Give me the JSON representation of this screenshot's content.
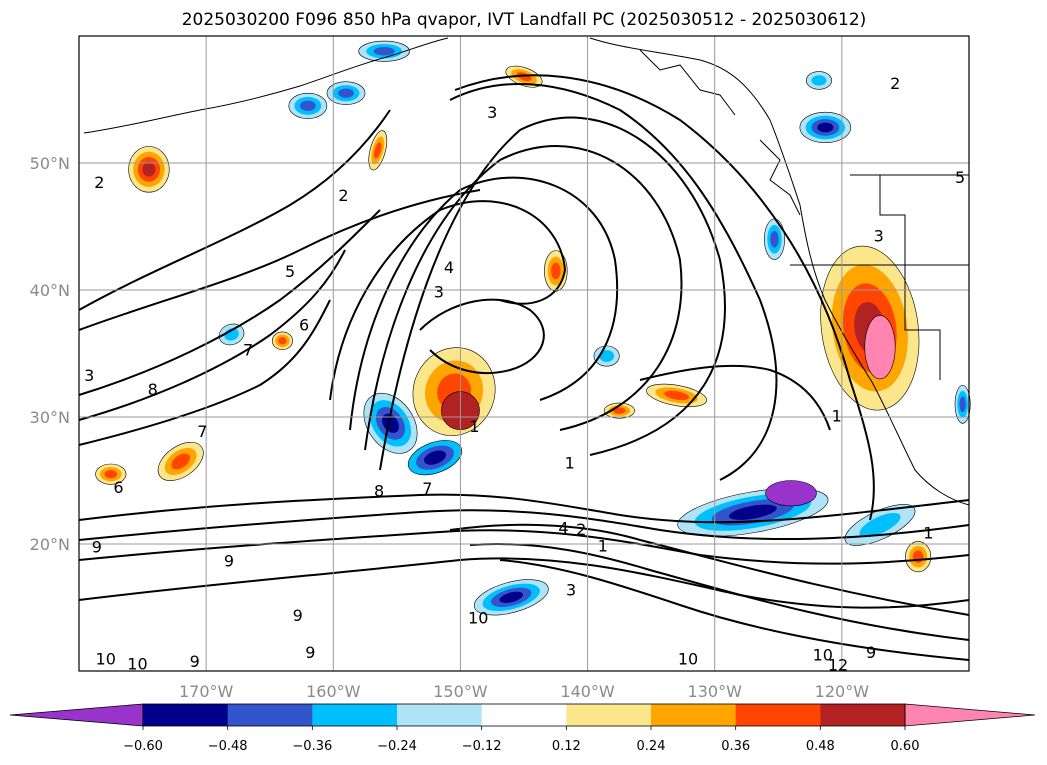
{
  "chart_data": {
    "type": "heatmap",
    "title": "2025030200 F096 850 hPa qvapor, IVT Landfall PC (2025030512 - 2025030612)",
    "lon_range": [
      -180,
      -110
    ],
    "lat_range": [
      10,
      60
    ],
    "x_ticks": [
      -170,
      -160,
      -150,
      -140,
      -130,
      -120
    ],
    "x_tick_labels": [
      "170°W",
      "160°W",
      "150°W",
      "140°W",
      "130°W",
      "120°W"
    ],
    "y_ticks": [
      20,
      30,
      40,
      50
    ],
    "y_tick_labels": [
      "20°N",
      "30°N",
      "40°N",
      "50°N"
    ],
    "grid": true,
    "colorbar": {
      "orientation": "horizontal",
      "extend": "both",
      "levels": [
        -0.72,
        -0.6,
        -0.48,
        -0.36,
        -0.24,
        -0.12,
        0.12,
        0.24,
        0.36,
        0.48,
        0.6,
        0.72
      ],
      "tick_labels": [
        "−0.60",
        "−0.48",
        "−0.36",
        "−0.24",
        "−0.12",
        "0.12",
        "0.24",
        "0.36",
        "0.48",
        "0.60"
      ],
      "colors": [
        "#9933cc",
        "#00008b",
        "#3355cc",
        "#00bfff",
        "#aee3f8",
        "#ffffff",
        "#fce68c",
        "#ffa500",
        "#ff4500",
        "#b22222",
        "#ff85b0",
        "#ff85b0"
      ]
    },
    "contour_labels": [
      {
        "text": "3",
        "lon": -147.5,
        "lat": 54.0
      },
      {
        "text": "2",
        "lon": -115.8,
        "lat": 56.3
      },
      {
        "text": "2",
        "lon": -178.4,
        "lat": 48.5
      },
      {
        "text": "2",
        "lon": -159.2,
        "lat": 47.5
      },
      {
        "text": "5",
        "lon": -163.4,
        "lat": 41.5
      },
      {
        "text": "4",
        "lon": -150.9,
        "lat": 41.8
      },
      {
        "text": "3",
        "lon": -151.7,
        "lat": 39.9
      },
      {
        "text": "6",
        "lon": -162.3,
        "lat": 37.3
      },
      {
        "text": "7",
        "lon": -166.7,
        "lat": 35.3
      },
      {
        "text": "3",
        "lon": -179.2,
        "lat": 33.3
      },
      {
        "text": "8",
        "lon": -174.2,
        "lat": 32.2
      },
      {
        "text": "7",
        "lon": -170.3,
        "lat": 28.9
      },
      {
        "text": "1",
        "lon": -148.9,
        "lat": 29.3
      },
      {
        "text": "1",
        "lon": -141.4,
        "lat": 26.4
      },
      {
        "text": "6",
        "lon": -176.9,
        "lat": 24.5
      },
      {
        "text": "8",
        "lon": -156.4,
        "lat": 24.2
      },
      {
        "text": "7",
        "lon": -152.6,
        "lat": 24.4
      },
      {
        "text": "4",
        "lon": -141.9,
        "lat": 21.3
      },
      {
        "text": "2",
        "lon": -140.5,
        "lat": 21.2
      },
      {
        "text": "1",
        "lon": -120.4,
        "lat": 30.1
      },
      {
        "text": "1",
        "lon": -138.8,
        "lat": 19.9
      },
      {
        "text": "9",
        "lon": -178.6,
        "lat": 19.8
      },
      {
        "text": "9",
        "lon": -168.2,
        "lat": 18.7
      },
      {
        "text": "3",
        "lon": -141.3,
        "lat": 16.4
      },
      {
        "text": "1",
        "lon": -113.2,
        "lat": 20.9
      },
      {
        "text": "9",
        "lon": -162.8,
        "lat": 14.4
      },
      {
        "text": "10",
        "lon": -148.6,
        "lat": 14.2
      },
      {
        "text": "10",
        "lon": -177.9,
        "lat": 11.0
      },
      {
        "text": "10",
        "lon": -175.4,
        "lat": 10.6
      },
      {
        "text": "9",
        "lon": -170.9,
        "lat": 10.8
      },
      {
        "text": "9",
        "lon": -161.8,
        "lat": 11.5
      },
      {
        "text": "10",
        "lon": -132.1,
        "lat": 11.0
      },
      {
        "text": "10",
        "lon": -121.5,
        "lat": 11.3
      },
      {
        "text": "12",
        "lon": -120.3,
        "lat": 10.5
      },
      {
        "text": "9",
        "lon": -117.7,
        "lat": 11.5
      },
      {
        "text": "3",
        "lon": -117.1,
        "lat": 44.3
      },
      {
        "text": "5",
        "lon": -110.7,
        "lat": 48.9
      }
    ]
  }
}
